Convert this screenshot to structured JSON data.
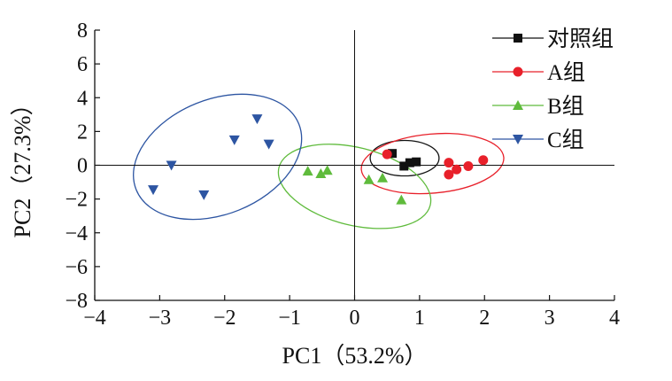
{
  "chart_data": {
    "type": "scatter",
    "title": "",
    "xlabel": "PC1（53.2%）",
    "ylabel": "PC2（27.3%）",
    "xlim": [
      -4,
      4
    ],
    "ylim": [
      -8,
      8
    ],
    "xticks": [
      -4,
      -3,
      -2,
      -1,
      0,
      1,
      2,
      3,
      4
    ],
    "yticks": [
      -8,
      -6,
      -4,
      -2,
      0,
      2,
      4,
      6,
      8
    ],
    "xtick_labels": [
      "−4",
      "−3",
      "−2",
      "−1",
      "0",
      "1",
      "2",
      "3",
      "4"
    ],
    "ytick_labels": [
      "−8",
      "−6",
      "−4",
      "−2",
      "0",
      "2",
      "4",
      "6",
      "8"
    ],
    "grid": false,
    "legend_position": "top-right",
    "series": [
      {
        "name": "对照组",
        "color": "#111111",
        "marker": "square",
        "points": [
          [
            0.58,
            0.7
          ],
          [
            0.76,
            -0.05
          ],
          [
            0.85,
            0.15
          ],
          [
            0.95,
            0.2
          ]
        ],
        "ellipse": {
          "cx": 0.77,
          "cy": 0.42,
          "rx": 0.53,
          "ry": 1.05,
          "angle": 0
        }
      },
      {
        "name": "A组",
        "color": "#e8202a",
        "marker": "circle",
        "points": [
          [
            0.5,
            0.65
          ],
          [
            1.45,
            0.15
          ],
          [
            1.45,
            -0.55
          ],
          [
            1.57,
            -0.25
          ],
          [
            1.75,
            -0.05
          ],
          [
            1.98,
            0.3
          ]
        ],
        "ellipse": {
          "cx": 1.2,
          "cy": 0.1,
          "rx": 1.1,
          "ry": 1.75,
          "angle": -5
        }
      },
      {
        "name": "B组",
        "color": "#5fbb3c",
        "marker": "triangle-up",
        "points": [
          [
            -0.72,
            -0.35
          ],
          [
            -0.52,
            -0.5
          ],
          [
            -0.42,
            -0.3
          ],
          [
            0.22,
            -0.85
          ],
          [
            0.43,
            -0.75
          ],
          [
            0.72,
            -2.05
          ]
        ],
        "ellipse": {
          "cx": 0.0,
          "cy": -1.25,
          "rx": 1.2,
          "ry": 2.3,
          "angle": 14
        }
      },
      {
        "name": "C组",
        "color": "#2d55a2",
        "marker": "triangle-down",
        "points": [
          [
            -3.1,
            -1.45
          ],
          [
            -2.82,
            0.0
          ],
          [
            -2.32,
            -1.75
          ],
          [
            -1.85,
            1.5
          ],
          [
            -1.5,
            2.75
          ],
          [
            -1.32,
            1.25
          ]
        ],
        "ellipse": {
          "cx": -2.11,
          "cy": 0.5,
          "rx": 1.35,
          "ry": 3.4,
          "angle": -22
        }
      }
    ]
  }
}
